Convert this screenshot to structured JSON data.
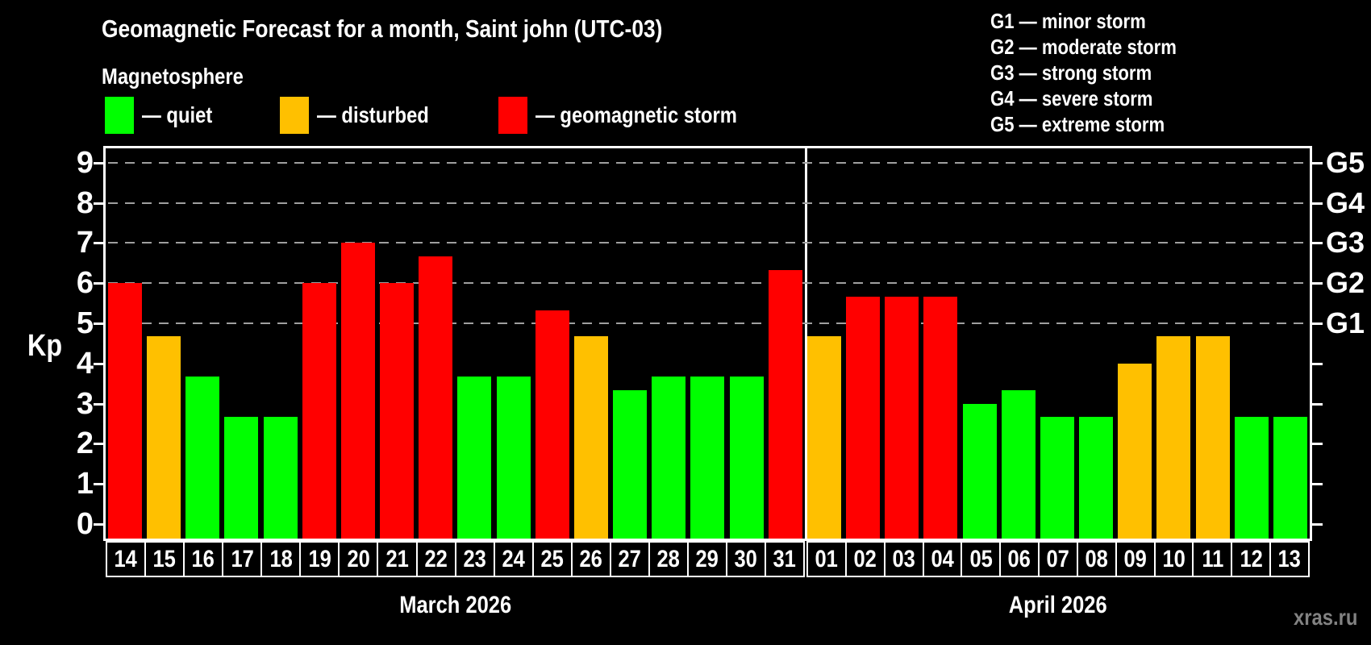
{
  "title": "Geomagnetic Forecast for a month, Saint john (UTC-03)",
  "subtitle": "Magnetosphere",
  "legend": [
    {
      "status": "quiet",
      "label": "— quiet"
    },
    {
      "status": "disturbed",
      "label": "— disturbed"
    },
    {
      "status": "storm",
      "label": "— geomagnetic storm"
    }
  ],
  "g_legend": [
    "G1 — minor storm",
    "G2 — moderate storm",
    "G3 — strong storm",
    "G4 — severe storm",
    "G5 — extreme storm"
  ],
  "watermark": "xras.ru",
  "colors": {
    "quiet": "#00ff00",
    "disturbed": "#ffc000",
    "storm": "#ff0000",
    "axis": "#ffffff",
    "grid": "#9f9f9f",
    "watermark": "#828282",
    "background": "#000000"
  },
  "chart_data": {
    "type": "bar",
    "ylabel": "Kp",
    "ylim": [
      0,
      9.4
    ],
    "y_ticks": [
      0,
      1,
      2,
      3,
      4,
      5,
      6,
      7,
      8,
      9
    ],
    "gridlines_at": [
      5,
      6,
      7,
      8,
      9
    ],
    "right_axis_labels": [
      {
        "kp": 5,
        "label": "G1"
      },
      {
        "kp": 6,
        "label": "G2"
      },
      {
        "kp": 7,
        "label": "G3"
      },
      {
        "kp": 8,
        "label": "G4"
      },
      {
        "kp": 9,
        "label": "G5"
      }
    ],
    "months": [
      {
        "label": "March 2026",
        "days": [
          {
            "day": "14",
            "kp": 6.0,
            "status": "storm"
          },
          {
            "day": "15",
            "kp": 4.67,
            "status": "disturbed"
          },
          {
            "day": "16",
            "kp": 3.67,
            "status": "quiet"
          },
          {
            "day": "17",
            "kp": 2.67,
            "status": "quiet"
          },
          {
            "day": "18",
            "kp": 2.67,
            "status": "quiet"
          },
          {
            "day": "19",
            "kp": 6.0,
            "status": "storm"
          },
          {
            "day": "20",
            "kp": 7.0,
            "status": "storm"
          },
          {
            "day": "21",
            "kp": 6.0,
            "status": "storm"
          },
          {
            "day": "22",
            "kp": 6.67,
            "status": "storm"
          },
          {
            "day": "23",
            "kp": 3.67,
            "status": "quiet"
          },
          {
            "day": "24",
            "kp": 3.67,
            "status": "quiet"
          },
          {
            "day": "25",
            "kp": 5.33,
            "status": "storm"
          },
          {
            "day": "26",
            "kp": 4.67,
            "status": "disturbed"
          },
          {
            "day": "27",
            "kp": 3.33,
            "status": "quiet"
          },
          {
            "day": "28",
            "kp": 3.67,
            "status": "quiet"
          },
          {
            "day": "29",
            "kp": 3.67,
            "status": "quiet"
          },
          {
            "day": "30",
            "kp": 3.67,
            "status": "quiet"
          },
          {
            "day": "31",
            "kp": 6.33,
            "status": "storm"
          }
        ]
      },
      {
        "label": "April 2026",
        "days": [
          {
            "day": "01",
            "kp": 4.67,
            "status": "disturbed"
          },
          {
            "day": "02",
            "kp": 5.67,
            "status": "storm"
          },
          {
            "day": "03",
            "kp": 5.67,
            "status": "storm"
          },
          {
            "day": "04",
            "kp": 5.67,
            "status": "storm"
          },
          {
            "day": "05",
            "kp": 3.0,
            "status": "quiet"
          },
          {
            "day": "06",
            "kp": 3.33,
            "status": "quiet"
          },
          {
            "day": "07",
            "kp": 2.67,
            "status": "quiet"
          },
          {
            "day": "08",
            "kp": 2.67,
            "status": "quiet"
          },
          {
            "day": "09",
            "kp": 4.0,
            "status": "disturbed"
          },
          {
            "day": "10",
            "kp": 4.67,
            "status": "disturbed"
          },
          {
            "day": "11",
            "kp": 4.67,
            "status": "disturbed"
          },
          {
            "day": "12",
            "kp": 2.67,
            "status": "quiet"
          },
          {
            "day": "13",
            "kp": 2.67,
            "status": "quiet"
          }
        ]
      }
    ]
  }
}
